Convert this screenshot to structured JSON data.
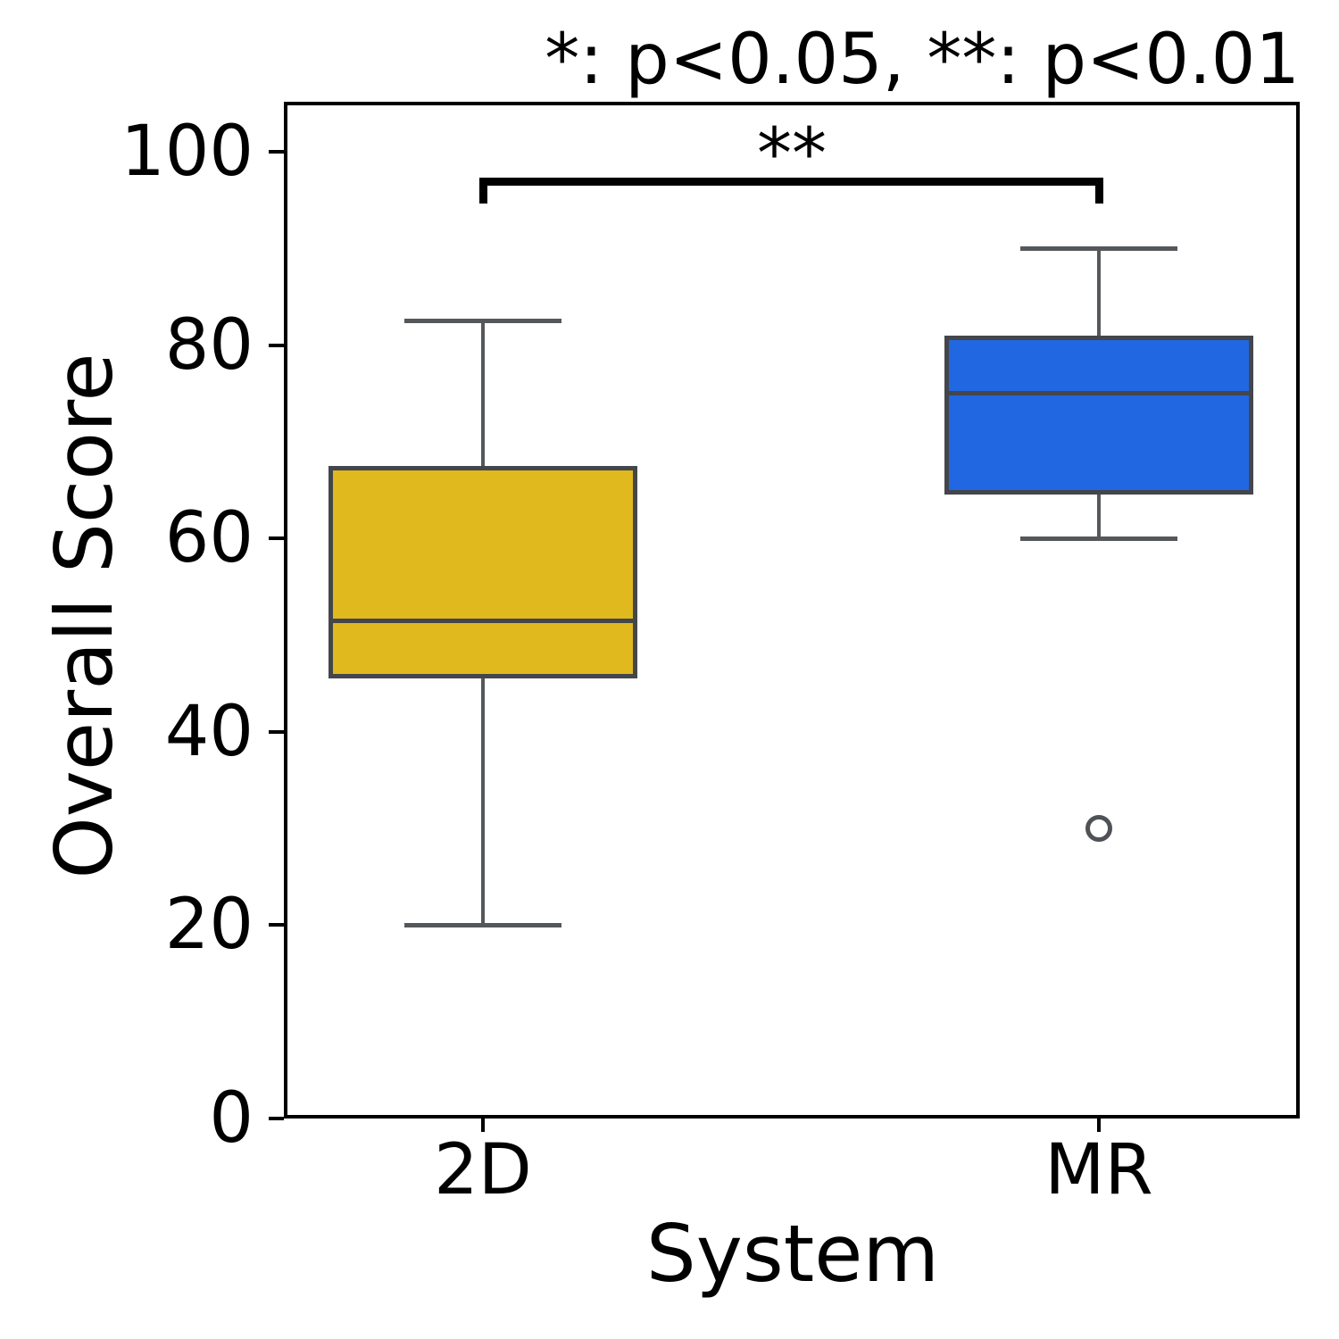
{
  "title": "*: p<0.05, **: p<0.01",
  "axes": {
    "x": {
      "label": "System",
      "categories": [
        "2D",
        "MR"
      ]
    },
    "y": {
      "label": "Overall Score",
      "tick_labels": [
        "0",
        "20",
        "40",
        "60",
        "80",
        "100"
      ]
    }
  },
  "chart_data": {
    "type": "boxplot",
    "title": "*: p<0.05, **: p<0.01",
    "xlabel": "System",
    "ylabel": "Overall Score",
    "ylim": [
      0,
      105
    ],
    "yticks": [
      0,
      20,
      40,
      60,
      80,
      100
    ],
    "grid": false,
    "legend": "none",
    "categories": [
      "2D",
      "MR"
    ],
    "series": [
      {
        "name": "2D",
        "whisker_low": 20,
        "q1": 45.5,
        "median": 51.5,
        "q3": 67.5,
        "whisker_high": 82.5,
        "outliers": [],
        "fill_color": "#DFB91E"
      },
      {
        "name": "MR",
        "whisker_low": 60,
        "q1": 64.5,
        "median": 75,
        "q3": 81,
        "whisker_high": 90,
        "outliers": [
          30
        ],
        "fill_color": "#2267E2"
      }
    ],
    "significance": {
      "pair": [
        "2D",
        "MR"
      ],
      "label": "**"
    }
  },
  "colors": {
    "box_edge": "#43464a",
    "whisker": "#55585b",
    "outlier_edge": "#4f5256",
    "bracket": "#000000",
    "axis": "#000000",
    "background": "#ffffff"
  }
}
